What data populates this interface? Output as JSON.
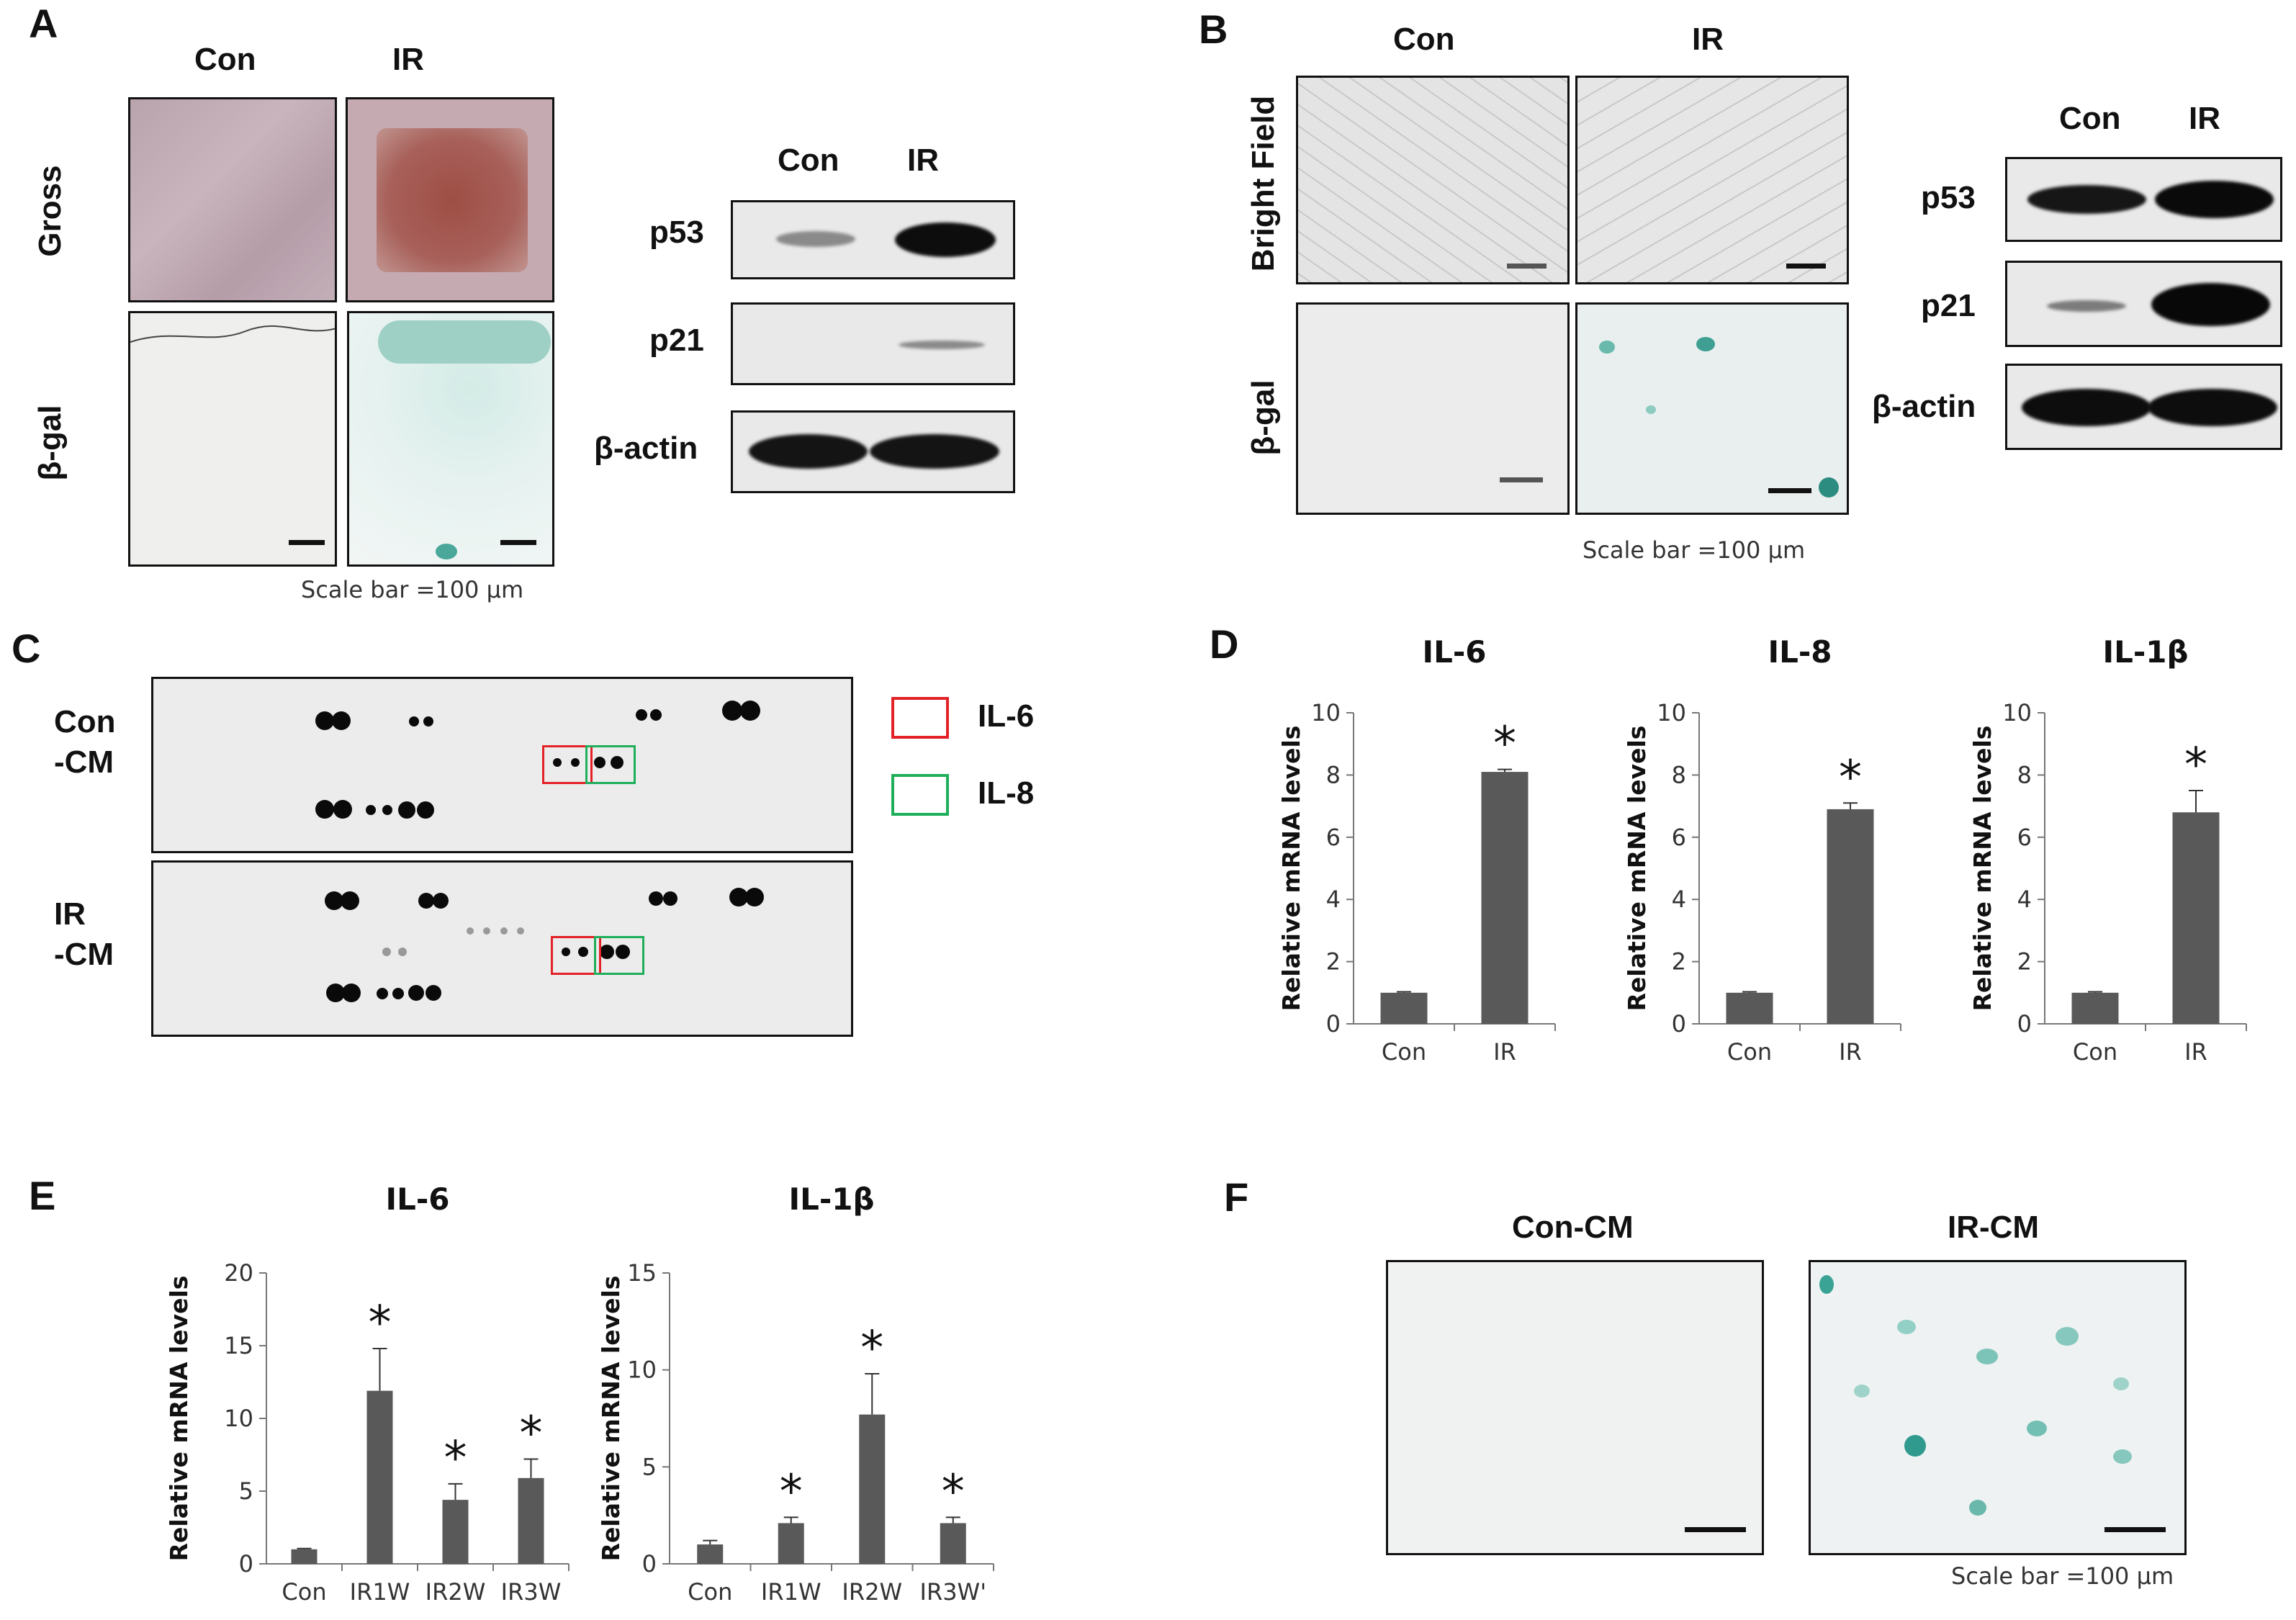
{
  "panels": {
    "A": {
      "letter": "A",
      "col_con": "Con",
      "col_ir": "IR",
      "row_gross": "Gross",
      "row_bgal": "β-gal",
      "scale": "Scale bar =100 μm",
      "blot_con": "Con",
      "blot_ir": "IR",
      "blot_rows": [
        "p53",
        "p21",
        "β-actin"
      ]
    },
    "B": {
      "letter": "B",
      "col_con": "Con",
      "col_ir": "IR",
      "row_bright": "Bright Field",
      "row_bgal": "β-gal",
      "scale": "Scale bar =100 μm",
      "blot_con": "Con",
      "blot_ir": "IR",
      "blot_rows": [
        "p53",
        "p21",
        "β-actin"
      ]
    },
    "C": {
      "letter": "C",
      "row1": [
        "Con",
        "-CM"
      ],
      "row2": [
        "IR",
        "-CM"
      ],
      "legend": [
        {
          "label": "IL-6",
          "color": "#e32227"
        },
        {
          "label": "IL-8",
          "color": "#1fae5a"
        }
      ]
    },
    "D": {
      "letter": "D"
    },
    "E": {
      "letter": "E"
    },
    "F": {
      "letter": "F",
      "col_con": "Con-CM",
      "col_ir": "IR-CM",
      "scale": "Scale bar =100 μm"
    }
  },
  "chart_data": [
    {
      "panel": "D",
      "type": "bar",
      "title": "IL-6",
      "ylabel": "Relative mRNA levels",
      "categories": [
        "Con",
        "IR"
      ],
      "values": [
        1.0,
        8.1
      ],
      "errors": [
        0.03,
        0.08
      ],
      "significance": [
        "",
        "*"
      ],
      "ylim": [
        0,
        10
      ],
      "yticks": [
        0,
        2,
        4,
        6,
        8,
        10
      ]
    },
    {
      "panel": "D",
      "type": "bar",
      "title": "IL-8",
      "ylabel": "Relative mRNA levels",
      "categories": [
        "Con",
        "IR"
      ],
      "values": [
        1.0,
        6.9
      ],
      "errors": [
        0.03,
        0.2
      ],
      "significance": [
        "",
        "*"
      ],
      "ylim": [
        0,
        10
      ],
      "yticks": [
        0,
        2,
        4,
        6,
        8,
        10
      ]
    },
    {
      "panel": "D",
      "type": "bar",
      "title": "IL-1β",
      "ylabel": "Relative mRNA levels",
      "categories": [
        "Con",
        "IR"
      ],
      "values": [
        1.0,
        6.8
      ],
      "errors": [
        0.03,
        0.7
      ],
      "significance": [
        "",
        "*"
      ],
      "ylim": [
        0,
        10
      ],
      "yticks": [
        0,
        2,
        4,
        6,
        8,
        10
      ]
    },
    {
      "panel": "E",
      "type": "bar",
      "title": "IL-6",
      "ylabel": "Relative mRNA levels",
      "categories": [
        "Con",
        "IR1W",
        "IR2W",
        "IR3W"
      ],
      "values": [
        1.0,
        11.9,
        4.4,
        5.9
      ],
      "errors": [
        0.05,
        2.9,
        1.1,
        1.3
      ],
      "significance": [
        "",
        "*",
        "*",
        "*"
      ],
      "ylim": [
        0,
        20
      ],
      "yticks": [
        0,
        5,
        10,
        15,
        20
      ]
    },
    {
      "panel": "E",
      "type": "bar",
      "title": "IL-1β",
      "ylabel": "Relative mRNA levels",
      "categories": [
        "Con",
        "IR1W",
        "IR2W",
        "IR3W'"
      ],
      "values": [
        1.0,
        2.1,
        7.7,
        2.1
      ],
      "errors": [
        0.2,
        0.3,
        2.1,
        0.3
      ],
      "significance": [
        "",
        "*",
        "*",
        "*"
      ],
      "ylim": [
        0,
        15
      ],
      "yticks": [
        0,
        5,
        10,
        15
      ]
    }
  ]
}
